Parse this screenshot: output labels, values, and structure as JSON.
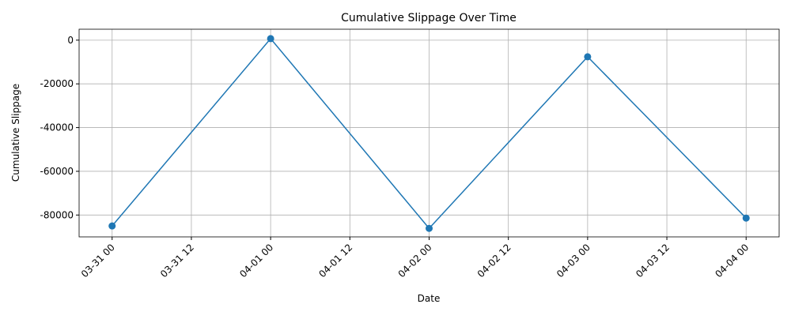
{
  "chart_data": {
    "type": "line",
    "title": "Cumulative Slippage Over Time",
    "x_label": "Date",
    "y_label": "Cumulative Slippage",
    "x": [
      "03-31 00",
      "04-01 00",
      "04-02 00",
      "04-03 00",
      "04-04 00"
    ],
    "series": [
      {
        "name": "Cumulative Slippage",
        "color": "#1f77b4",
        "values": [
          -85000,
          700,
          -86100,
          -7600,
          -81400
        ]
      }
    ],
    "xlim": [
      "03-30 19",
      "04-04 05"
    ],
    "xticks": [
      "03-31 00",
      "03-31 12",
      "04-01 00",
      "04-01 12",
      "04-02 00",
      "04-02 12",
      "04-03 00",
      "04-03 12",
      "04-04 00"
    ],
    "ylim": [
      -90000,
      5000
    ],
    "yticks": [
      -80000,
      -60000,
      -40000,
      -20000,
      0
    ],
    "grid": true,
    "marker": "circle"
  }
}
